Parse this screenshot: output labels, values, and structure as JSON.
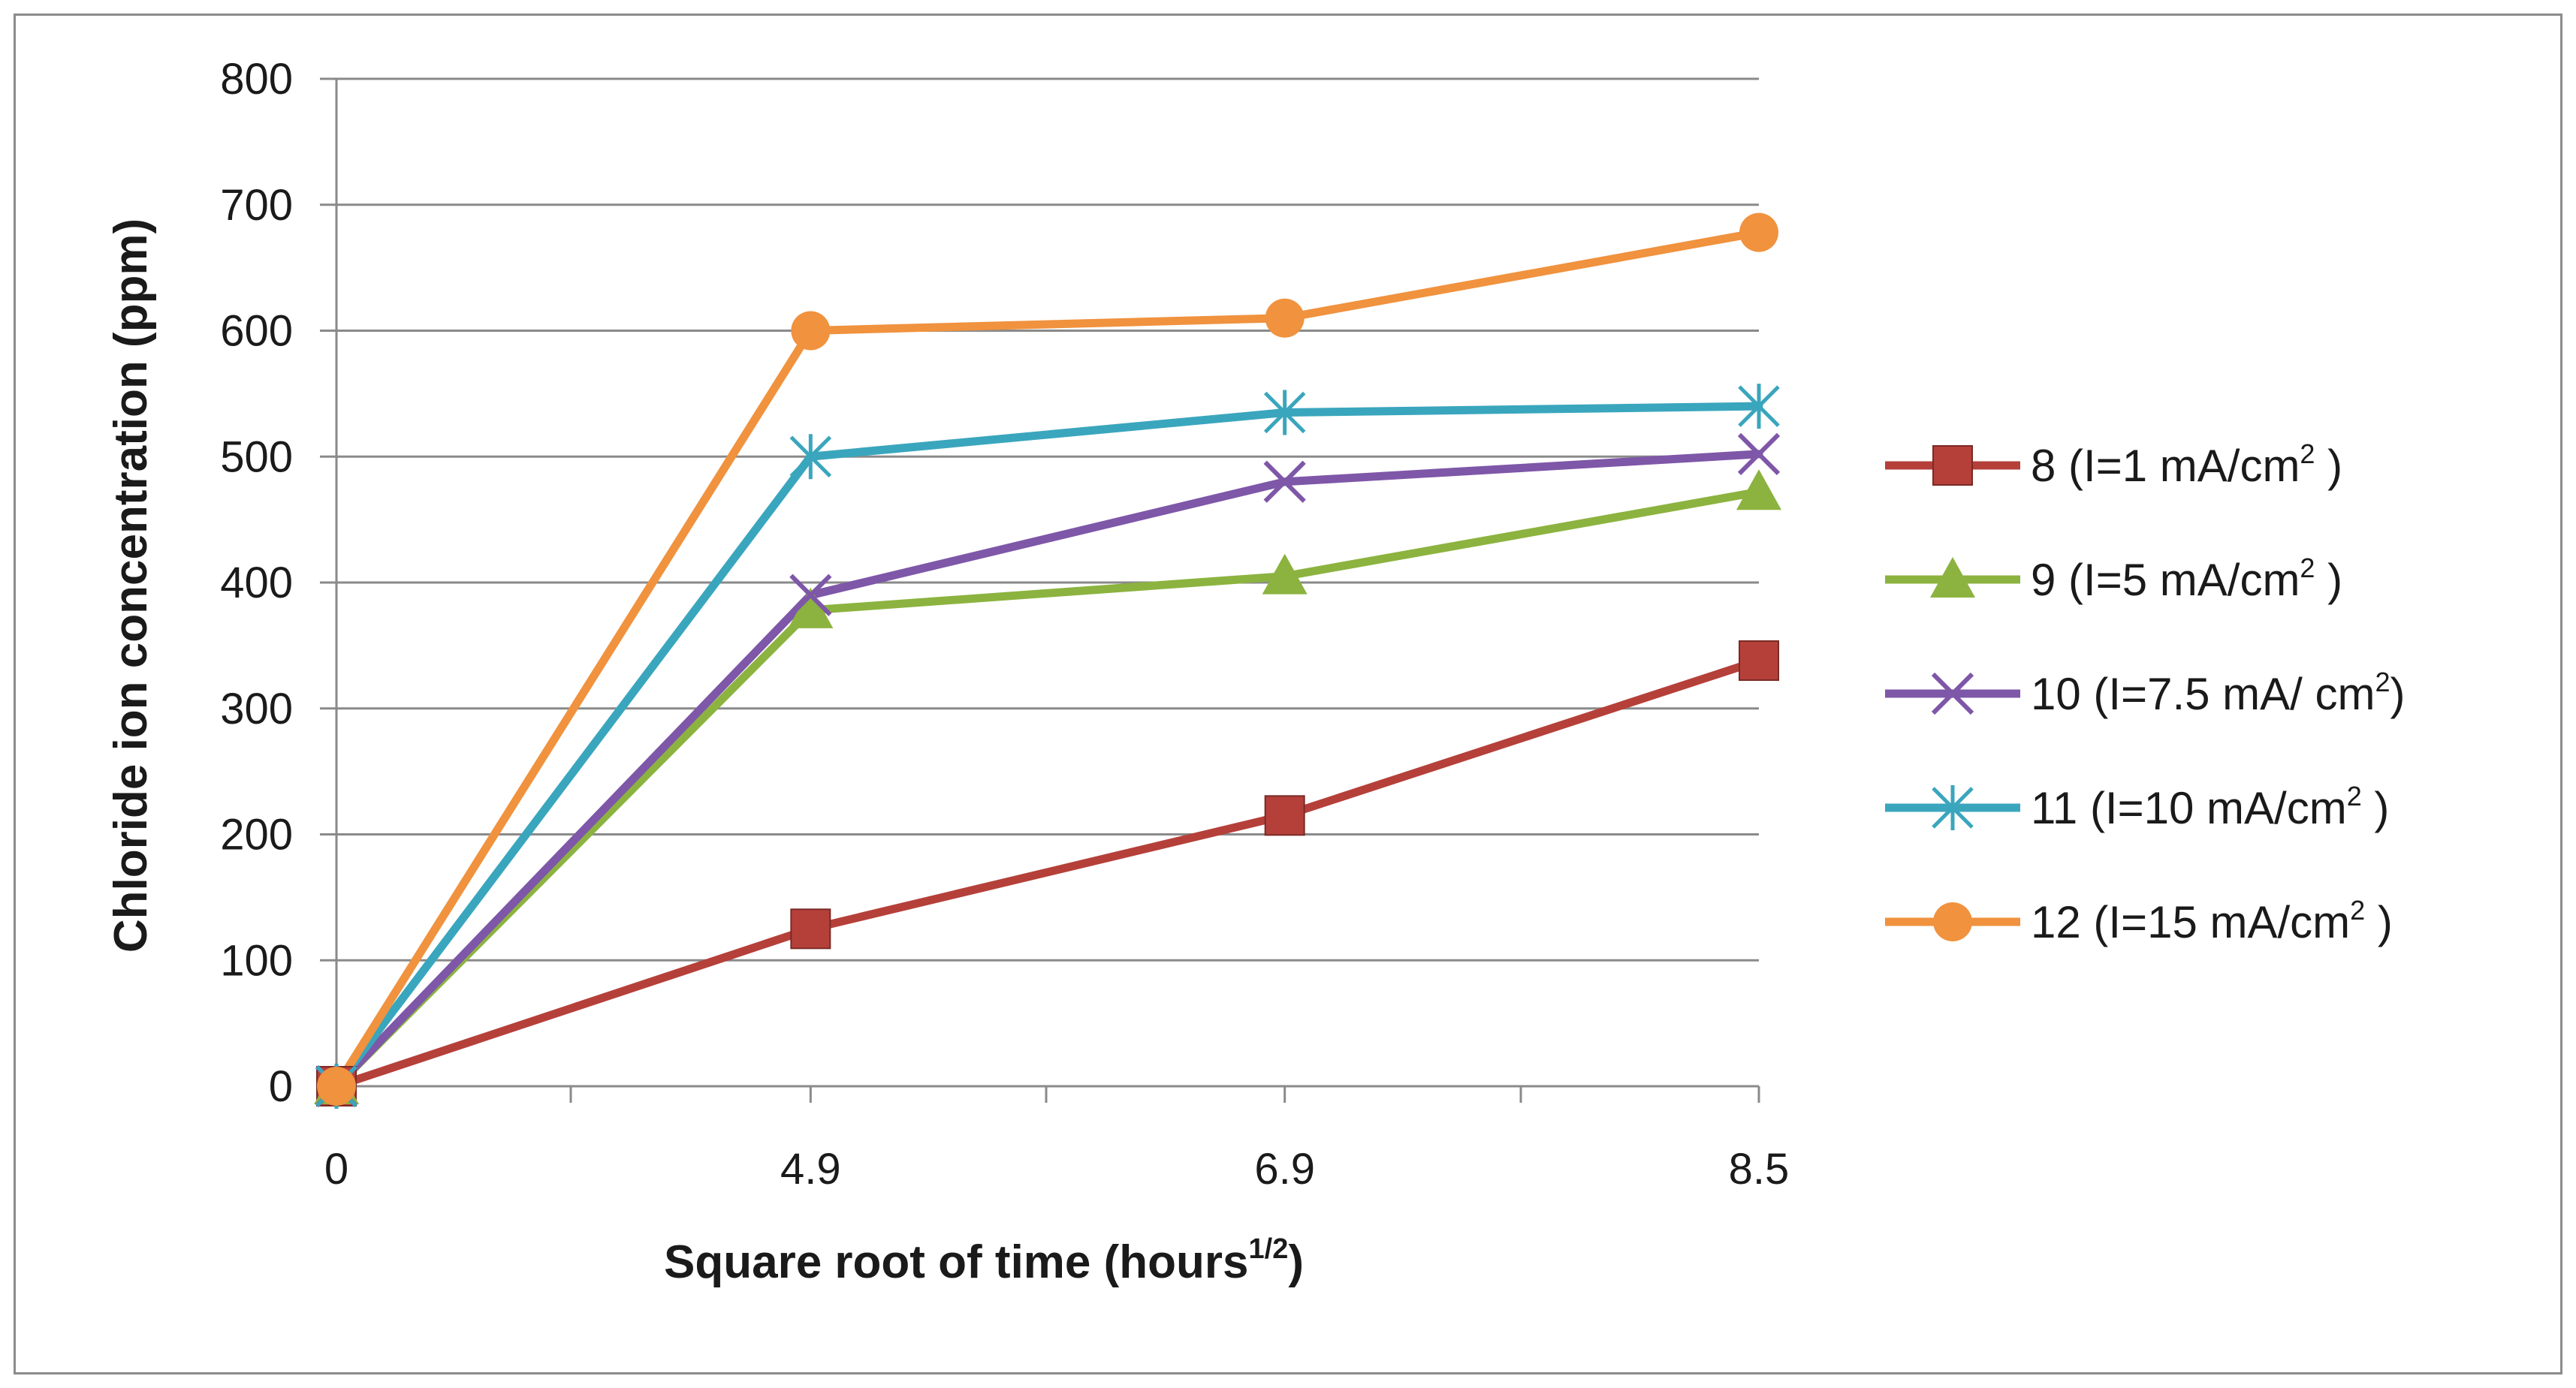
{
  "chart_data": {
    "type": "line",
    "title": "",
    "xlabel": "Square root of time (hours",
    "xlabel_sup": "1/2",
    "xlabel_end": ")",
    "ylabel": "Chloride ion concentration (ppm)",
    "categories": [
      "0",
      "4.9",
      "6.9",
      "8.5"
    ],
    "ylim": [
      0,
      800
    ],
    "yticks": [
      0,
      100,
      200,
      300,
      400,
      500,
      600,
      700,
      800
    ],
    "grid": true,
    "legend_position": "right",
    "series": [
      {
        "name": "8 (I=1 mA/cm",
        "sup": "2",
        "end": " )",
        "color": "#b5403a",
        "marker": "square",
        "values": [
          0,
          125,
          215,
          338
        ]
      },
      {
        "name": "9 (I=5 mA/cm",
        "sup": "2",
        "end": " )",
        "color": "#8cb33f",
        "marker": "triangle",
        "values": [
          0,
          378,
          405,
          472
        ]
      },
      {
        "name": "10 (I=7.5 mA/ cm",
        "sup": "2",
        "end": ")",
        "color": "#7e57a8",
        "marker": "x",
        "values": [
          0,
          390,
          480,
          502
        ]
      },
      {
        "name": "11 (I=10 mA/cm",
        "sup": "2",
        "end": " )",
        "color": "#3aa6bd",
        "marker": "star",
        "values": [
          0,
          500,
          535,
          540
        ]
      },
      {
        "name": "12 (I=15 mA/cm",
        "sup": "2",
        "end": " )",
        "color": "#f0923e",
        "marker": "circle",
        "values": [
          0,
          600,
          610,
          678
        ]
      }
    ]
  }
}
